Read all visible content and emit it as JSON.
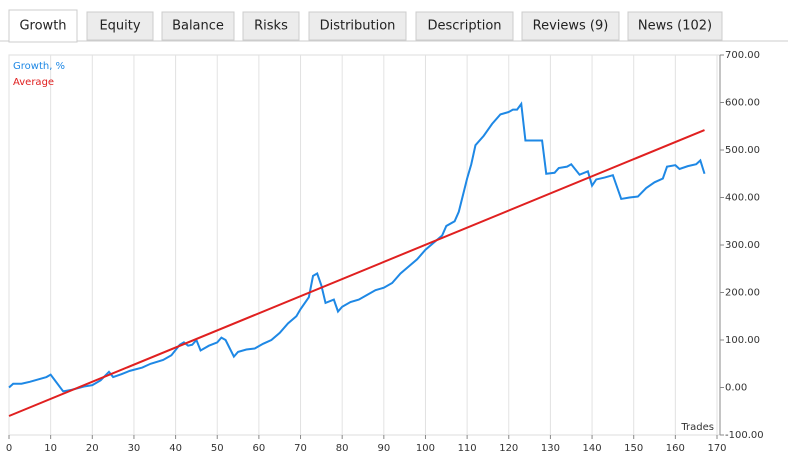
{
  "tabs": [
    "Growth",
    "Equity",
    "Balance",
    "Risks",
    "Distribution",
    "Description",
    "Reviews (9)",
    "News (102)"
  ],
  "active_tab": 0,
  "chart_data": {
    "type": "line",
    "x_label": "Trades",
    "series": [
      {
        "name": "Growth, %",
        "color": "#1e88e5",
        "x": [
          0,
          1,
          3,
          5,
          7,
          9,
          10,
          13,
          15,
          18,
          20,
          22,
          24,
          25,
          27,
          29,
          32,
          34,
          37,
          39,
          41,
          42,
          43,
          44,
          45,
          46,
          48,
          50,
          51,
          52,
          54,
          55,
          57,
          59,
          61,
          63,
          65,
          67,
          69,
          70,
          72,
          73,
          74,
          75,
          76,
          78,
          79,
          80,
          82,
          84,
          86,
          88,
          90,
          92,
          94,
          96,
          98,
          100,
          102,
          104,
          105,
          107,
          108,
          110,
          111,
          112,
          114,
          116,
          118,
          120,
          121,
          122,
          123,
          124,
          126,
          128,
          129,
          131,
          132,
          134,
          135,
          137,
          139,
          140,
          141,
          143,
          145,
          147,
          149,
          151,
          153,
          155,
          157,
          158,
          160,
          161,
          163,
          165,
          166,
          167
        ],
        "values": [
          0,
          8,
          8,
          12,
          17,
          22,
          27,
          -8,
          -5,
          2,
          5,
          15,
          33,
          22,
          28,
          35,
          42,
          50,
          58,
          68,
          90,
          95,
          88,
          90,
          100,
          78,
          88,
          95,
          105,
          100,
          65,
          75,
          80,
          82,
          92,
          100,
          115,
          135,
          150,
          165,
          190,
          235,
          240,
          215,
          178,
          185,
          160,
          170,
          180,
          185,
          195,
          205,
          210,
          220,
          240,
          255,
          270,
          290,
          305,
          320,
          340,
          350,
          370,
          440,
          470,
          510,
          530,
          555,
          575,
          580,
          585,
          585,
          597,
          520,
          520,
          520,
          450,
          452,
          462,
          465,
          470,
          448,
          455,
          425,
          438,
          442,
          447,
          397,
          400,
          402,
          420,
          432,
          440,
          465,
          468,
          460,
          466,
          470,
          478,
          450
        ]
      },
      {
        "name": "Average",
        "color": "#e02020",
        "x": [
          0,
          167
        ],
        "values": [
          -60,
          542
        ]
      }
    ],
    "xlim": [
      0,
      170
    ],
    "xticks": [
      0,
      10,
      20,
      30,
      40,
      50,
      60,
      70,
      80,
      90,
      100,
      110,
      120,
      130,
      140,
      150,
      160,
      170
    ],
    "ylim": [
      -100,
      700
    ],
    "yticks": [
      {
        "value": -100,
        "label": "-100.00"
      },
      {
        "value": 0,
        "label": "0.00"
      },
      {
        "value": 100,
        "label": "100.00"
      },
      {
        "value": 200,
        "label": "200.00"
      },
      {
        "value": 300,
        "label": "300.00"
      },
      {
        "value": 400,
        "label": "400.00"
      },
      {
        "value": 500,
        "label": "500.00"
      },
      {
        "value": 600,
        "label": "600.00"
      },
      {
        "value": 700,
        "label": "700.00"
      }
    ],
    "grid": "x"
  }
}
